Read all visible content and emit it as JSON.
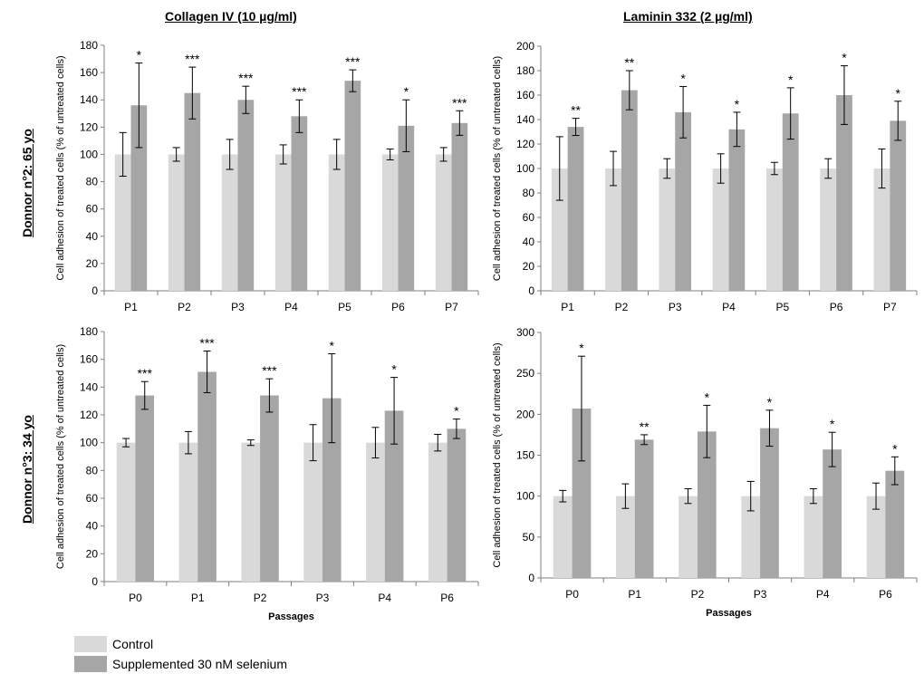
{
  "figure": {
    "col_titles": [
      "Collagen IV (10 µg/ml)",
      "Laminin 332 (2 µg/ml)"
    ],
    "row_titles": [
      "Donnor n°2: 65 yo",
      "Donnor n°3: 34 yo"
    ],
    "legend": [
      {
        "label": "Control",
        "color": "#d9d9d9"
      },
      {
        "label": "Supplemented 30 nM selenium",
        "color": "#a6a6a6"
      }
    ]
  },
  "chart_data": [
    {
      "type": "bar",
      "categories": [
        "P1",
        "P2",
        "P3",
        "P4",
        "P5",
        "P6",
        "P7"
      ],
      "series": [
        {
          "name": "Control",
          "values": [
            100,
            100,
            100,
            100,
            100,
            100,
            100
          ],
          "errors": [
            16,
            5,
            11,
            7,
            11,
            4,
            5
          ]
        },
        {
          "name": "Supplemented 30 nM selenium",
          "values": [
            136,
            145,
            140,
            128,
            154,
            121,
            123
          ],
          "errors": [
            31,
            19,
            10,
            12,
            8,
            19,
            9
          ]
        }
      ],
      "significance": [
        "*",
        "***",
        "***",
        "***",
        "***",
        "*",
        "***"
      ],
      "ylabel": "Cell adhesion of treated cells (% of untreated  cells)",
      "xlabel": "",
      "ylim": [
        0,
        180
      ],
      "yticks": [
        0,
        20,
        40,
        60,
        80,
        100,
        120,
        140,
        160,
        180
      ],
      "grid": false
    },
    {
      "type": "bar",
      "categories": [
        "P1",
        "P2",
        "P3",
        "P4",
        "P5",
        "P6",
        "P7"
      ],
      "series": [
        {
          "name": "Control",
          "values": [
            100,
            100,
            100,
            100,
            100,
            100,
            100
          ],
          "errors": [
            26,
            14,
            8,
            12,
            5,
            8,
            16
          ]
        },
        {
          "name": "Supplemented 30 nM selenium",
          "values": [
            134,
            164,
            146,
            132,
            145,
            160,
            139
          ],
          "errors": [
            7,
            16,
            21,
            14,
            21,
            24,
            16
          ]
        }
      ],
      "significance": [
        "**",
        "**",
        "*",
        "*",
        "*",
        "*",
        "*"
      ],
      "ylabel": "Cell adhesion of treated cells (% of untreated  cells)",
      "xlabel": "",
      "ylim": [
        0,
        200
      ],
      "yticks": [
        0,
        20,
        40,
        60,
        80,
        100,
        120,
        140,
        160,
        180,
        200
      ],
      "grid": false
    },
    {
      "type": "bar",
      "categories": [
        "P0",
        "P1",
        "P2",
        "P3",
        "P4",
        "P6"
      ],
      "series": [
        {
          "name": "Control",
          "values": [
            100,
            100,
            100,
            100,
            100,
            100
          ],
          "errors": [
            3,
            8,
            2,
            13,
            11,
            6
          ]
        },
        {
          "name": "Supplemented 30 nM selenium",
          "values": [
            134,
            151,
            134,
            132,
            123,
            110
          ],
          "errors": [
            10,
            15,
            12,
            32,
            24,
            7
          ]
        }
      ],
      "significance": [
        "***",
        "***",
        "***",
        "*",
        "*",
        "*"
      ],
      "ylabel": "Cell adhesion of treated cells (% of untreated  cells)",
      "xlabel": "Passages",
      "ylim": [
        0,
        180
      ],
      "yticks": [
        0,
        20,
        40,
        60,
        80,
        100,
        120,
        140,
        160,
        180
      ],
      "grid": false
    },
    {
      "type": "bar",
      "categories": [
        "P0",
        "P1",
        "P2",
        "P3",
        "P4",
        "P6"
      ],
      "series": [
        {
          "name": "Control",
          "values": [
            100,
            100,
            100,
            100,
            100,
            100
          ],
          "errors": [
            7,
            15,
            9,
            18,
            9,
            16
          ]
        },
        {
          "name": "Supplemented 30 nM selenium",
          "values": [
            207,
            169,
            179,
            183,
            157,
            131
          ],
          "errors": [
            64,
            6,
            32,
            22,
            21,
            17
          ]
        }
      ],
      "significance": [
        "*",
        "**",
        "*",
        "*",
        "*",
        "*"
      ],
      "ylabel": "Cell adhesion of treated cells (% of untreated  cells)",
      "xlabel": "Passages",
      "ylim": [
        0,
        300
      ],
      "yticks": [
        0,
        50,
        100,
        150,
        200,
        250,
        300
      ],
      "grid": false
    }
  ]
}
